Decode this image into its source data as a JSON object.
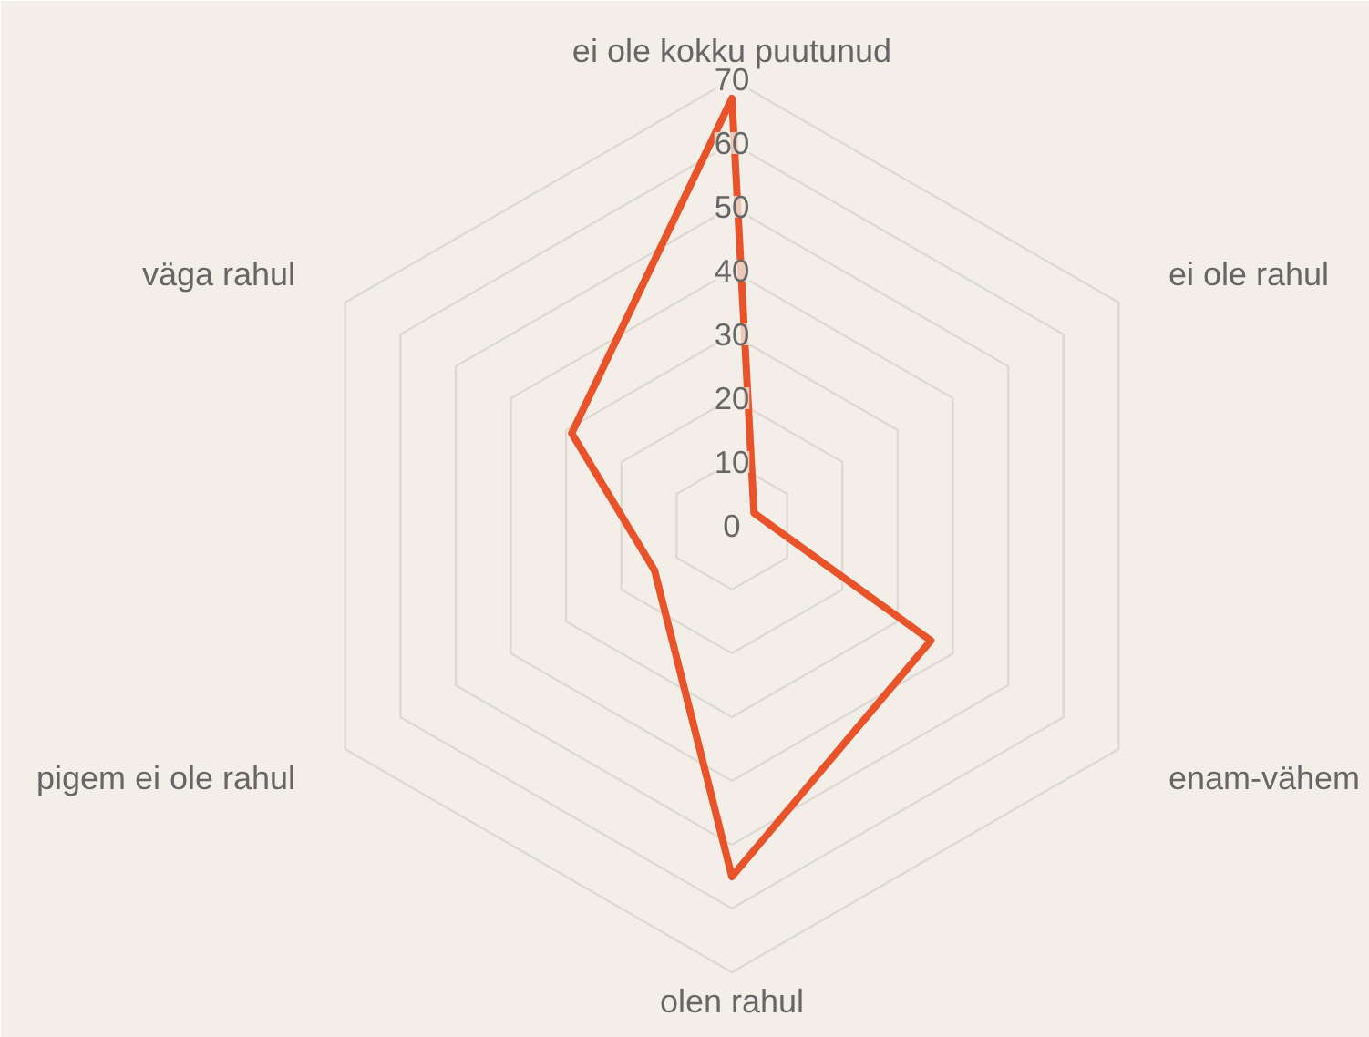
{
  "chart_data": {
    "type": "radar",
    "categories": [
      "ei ole kokku puutunud",
      "ei ole rahul",
      "enam-vähem",
      "olen rahul",
      "pigem ei ole rahul",
      "väga rahul"
    ],
    "series": [
      {
        "color": "#e8532a",
        "values": [
          67,
          4,
          36,
          55,
          14,
          29
        ]
      }
    ],
    "ylim": [
      0,
      70
    ],
    "yticks": [
      0,
      10,
      20,
      30,
      40,
      50,
      60,
      70
    ],
    "grid": true
  }
}
